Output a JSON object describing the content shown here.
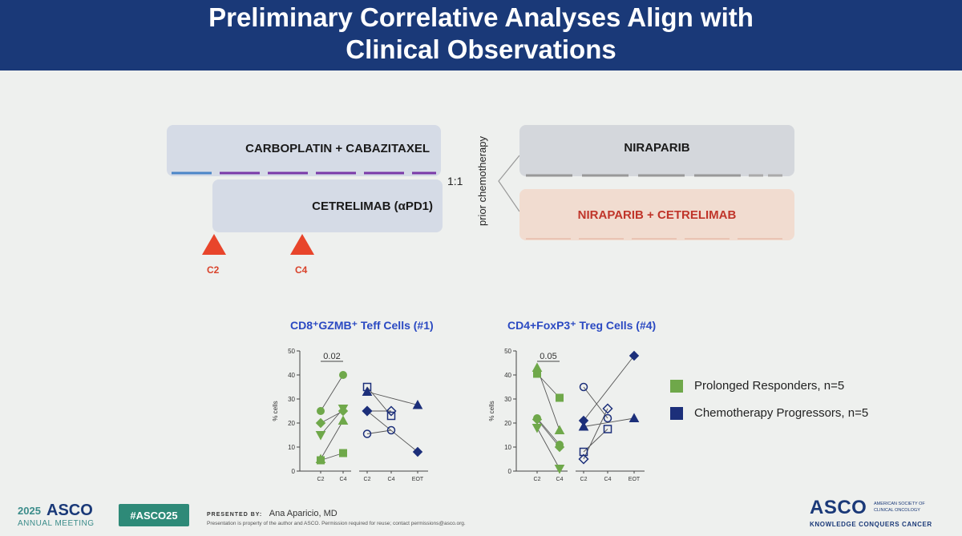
{
  "header": {
    "title_line1": "Preliminary Correlative Analyses Align with",
    "title_line2": "Clinical Observations",
    "bg_color": "#1a3978"
  },
  "schema": {
    "chemo_box": "CARBOPLATIN + CABAZITAXEL",
    "io_box": "CETRELIMAB (αPD1)",
    "randomization": "1:1",
    "prior_label": "prior chemotherapy",
    "arm1": "NIRAPARIB",
    "arm2": "NIRAPARIB + CETRELIMAB",
    "markers": [
      "C2",
      "C4"
    ],
    "marker_color": "#e8452b"
  },
  "chart_data": [
    {
      "type": "scatter",
      "title": "CD8⁺GZMB⁺ Teff Cells (#1)",
      "ylabel": "% cells",
      "ylim": [
        0,
        50
      ],
      "yticks": [
        "0",
        "10",
        "20",
        "30",
        "40",
        "50"
      ],
      "xticks_left": [
        "C2",
        "C4"
      ],
      "xticks_right": [
        "C2",
        "C4",
        "EOT"
      ],
      "pvalue": "0.02",
      "prolonged_responders": [
        {
          "marker": "circle",
          "values": [
            25,
            40
          ]
        },
        {
          "marker": "diamond",
          "values": [
            20,
            25
          ]
        },
        {
          "marker": "triangle-down",
          "values": [
            15,
            26
          ]
        },
        {
          "marker": "triangle",
          "values": [
            5,
            21
          ]
        },
        {
          "marker": "square",
          "values": [
            4.5,
            7.5
          ]
        }
      ],
      "chemotherapy_progressors": [
        {
          "marker": "square-open",
          "values": [
            35,
            23,
            null
          ]
        },
        {
          "marker": "triangle",
          "values": [
            33,
            null,
            27.5
          ]
        },
        {
          "marker": "diamond",
          "values": [
            25,
            null,
            8
          ]
        },
        {
          "marker": "circle-open",
          "values": [
            15.5,
            17,
            null
          ]
        },
        {
          "marker": "diamond-open",
          "values": [
            25,
            25,
            null
          ]
        }
      ]
    },
    {
      "type": "scatter",
      "title": "CD4+FoxP3⁺ Treg Cells (#4)",
      "ylabel": "% cells",
      "ylim": [
        0,
        50
      ],
      "yticks": [
        "0",
        "10",
        "20",
        "30",
        "40",
        "50"
      ],
      "xticks_left": [
        "C2",
        "C4"
      ],
      "xticks_right": [
        "C2",
        "C4",
        "EOT"
      ],
      "pvalue": "0.05",
      "prolonged_responders": [
        {
          "marker": "triangle",
          "values": [
            43,
            17
          ]
        },
        {
          "marker": "square",
          "values": [
            40.5,
            30.5
          ]
        },
        {
          "marker": "circle",
          "values": [
            22,
            11
          ]
        },
        {
          "marker": "diamond",
          "values": [
            21.5,
            10
          ]
        },
        {
          "marker": "triangle-down",
          "values": [
            18,
            1
          ]
        }
      ],
      "chemotherapy_progressors": [
        {
          "marker": "circle-open",
          "values": [
            35,
            22,
            null
          ]
        },
        {
          "marker": "diamond",
          "values": [
            21,
            null,
            48
          ]
        },
        {
          "marker": "triangle",
          "values": [
            18.5,
            null,
            22
          ]
        },
        {
          "marker": "square-open",
          "values": [
            8,
            17.5,
            null
          ]
        },
        {
          "marker": "diamond-open",
          "values": [
            5,
            26,
            null
          ]
        }
      ]
    }
  ],
  "legend": {
    "items": [
      {
        "label": "Prolonged Responders, n=5",
        "color": "#6fa84a"
      },
      {
        "label": "Chemotherapy Progressors, n=5",
        "color": "#1c2f7a"
      }
    ]
  },
  "footer": {
    "year": "2025",
    "org": "ASCO",
    "meeting": "ANNUAL MEETING",
    "hashtag": "#ASCO25",
    "presented_prefix": "PRESENTED BY:",
    "presenter": "Ana Aparicio, MD",
    "disclaimer": "Presentation is property of the author and ASCO. Permission required for reuse; contact permissions@asco.org.",
    "logo_main": "ASCO",
    "logo_side1": "AMERICAN SOCIETY OF",
    "logo_side2": "CLINICAL ONCOLOGY",
    "tagline": "KNOWLEDGE CONQUERS CANCER"
  }
}
